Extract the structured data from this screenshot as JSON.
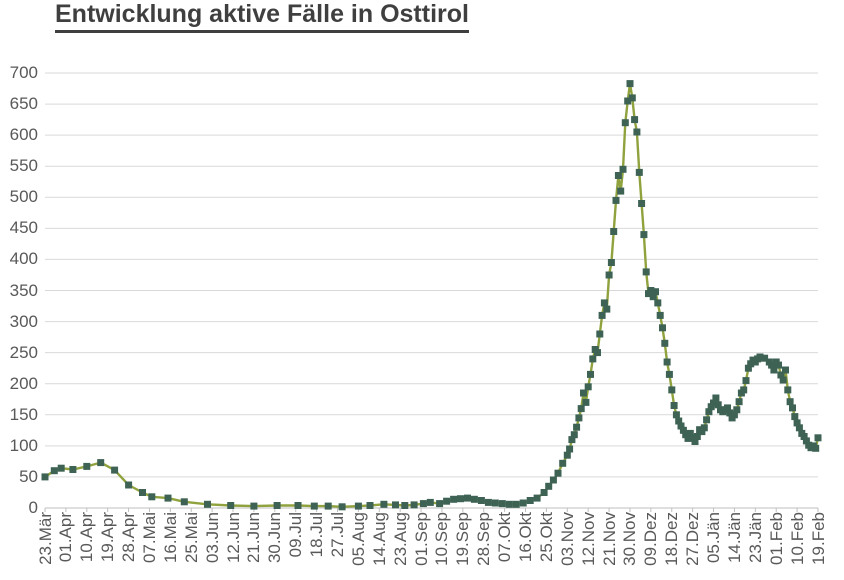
{
  "title": "Entwicklung aktive Fälle in Osttirol",
  "chart_data": {
    "type": "line",
    "title": "Entwicklung aktive Fälle in Osttirol",
    "legend": false,
    "grid": true,
    "x_axis": {
      "tick_labels": [
        "23.Mär",
        "01.Apr",
        "10.Apr",
        "19.Apr",
        "28.Apr",
        "07.Mai",
        "16.Mai",
        "25.Mai",
        "03.Jun",
        "12.Jun",
        "21.Jun",
        "30.Jun",
        "09.Jul",
        "18.Jul",
        "27.Jul",
        "05.Aug",
        "14.Aug",
        "23.Aug",
        "01.Sep",
        "10.Sep",
        "19.Sep",
        "28.Sep",
        "07.Okt",
        "16.Okt",
        "25.Okt",
        "03.Nov",
        "12.Nov",
        "21.Nov",
        "30.Nov",
        "09.Dez",
        "18.Dez",
        "27.Dez",
        "05.Jän",
        "14.Jän",
        "23.Jän",
        "01.Feb",
        "10.Feb",
        "19.Feb"
      ],
      "tick_interval_days": 9,
      "day_range": [
        0,
        333
      ]
    },
    "y_axis": {
      "min": 0,
      "max": 700,
      "step": 50,
      "tick_labels": [
        "0",
        "50",
        "100",
        "150",
        "200",
        "250",
        "300",
        "350",
        "400",
        "450",
        "500",
        "550",
        "600",
        "650",
        "700"
      ]
    },
    "series": [
      {
        "name": "aktive Fälle",
        "points": [
          [
            0,
            50
          ],
          [
            4,
            60
          ],
          [
            7,
            64
          ],
          [
            12,
            62
          ],
          [
            18,
            67
          ],
          [
            24,
            73
          ],
          [
            30,
            61
          ],
          [
            36,
            37
          ],
          [
            42,
            25
          ],
          [
            46,
            18
          ],
          [
            53,
            16
          ],
          [
            60,
            10
          ],
          [
            70,
            6
          ],
          [
            80,
            4
          ],
          [
            90,
            3
          ],
          [
            100,
            4
          ],
          [
            109,
            4
          ],
          [
            116,
            3
          ],
          [
            122,
            3
          ],
          [
            128,
            2
          ],
          [
            135,
            3
          ],
          [
            140,
            4
          ],
          [
            146,
            6
          ],
          [
            151,
            5
          ],
          [
            155,
            4
          ],
          [
            159,
            5
          ],
          [
            163,
            7
          ],
          [
            166,
            9
          ],
          [
            170,
            7
          ],
          [
            173,
            11
          ],
          [
            176,
            14
          ],
          [
            179,
            15
          ],
          [
            182,
            16
          ],
          [
            185,
            14
          ],
          [
            188,
            12
          ],
          [
            191,
            9
          ],
          [
            194,
            8
          ],
          [
            197,
            7
          ],
          [
            200,
            6
          ],
          [
            203,
            6
          ],
          [
            206,
            8
          ],
          [
            209,
            12
          ],
          [
            212,
            16
          ],
          [
            215,
            25
          ],
          [
            217,
            35
          ],
          [
            219,
            45
          ],
          [
            221,
            56
          ],
          [
            223,
            72
          ],
          [
            225,
            85
          ],
          [
            226,
            95
          ],
          [
            227,
            110
          ],
          [
            228,
            118
          ],
          [
            229,
            130
          ],
          [
            230,
            145
          ],
          [
            231,
            160
          ],
          [
            232,
            185
          ],
          [
            233,
            170
          ],
          [
            234,
            195
          ],
          [
            235,
            215
          ],
          [
            236,
            240
          ],
          [
            237,
            255
          ],
          [
            238,
            250
          ],
          [
            239,
            280
          ],
          [
            240,
            310
          ],
          [
            241,
            330
          ],
          [
            242,
            320
          ],
          [
            243,
            375
          ],
          [
            244,
            395
          ],
          [
            245,
            445
          ],
          [
            246,
            495
          ],
          [
            247,
            535
          ],
          [
            248,
            510
          ],
          [
            249,
            545
          ],
          [
            250,
            620
          ],
          [
            251,
            655
          ],
          [
            252,
            683
          ],
          [
            253,
            660
          ],
          [
            254,
            625
          ],
          [
            255,
            605
          ],
          [
            256,
            540
          ],
          [
            257,
            490
          ],
          [
            258,
            440
          ],
          [
            259,
            380
          ],
          [
            260,
            345
          ],
          [
            261,
            350
          ],
          [
            262,
            340
          ],
          [
            263,
            348
          ],
          [
            264,
            330
          ],
          [
            265,
            310
          ],
          [
            266,
            290
          ],
          [
            267,
            265
          ],
          [
            268,
            235
          ],
          [
            269,
            215
          ],
          [
            270,
            190
          ],
          [
            271,
            165
          ],
          [
            272,
            150
          ],
          [
            273,
            140
          ],
          [
            274,
            132
          ],
          [
            275,
            125
          ],
          [
            276,
            118
          ],
          [
            277,
            112
          ],
          [
            278,
            120
          ],
          [
            279,
            113
          ],
          [
            280,
            107
          ],
          [
            281,
            115
          ],
          [
            282,
            126
          ],
          [
            283,
            123
          ],
          [
            284,
            129
          ],
          [
            285,
            142
          ],
          [
            286,
            155
          ],
          [
            287,
            163
          ],
          [
            288,
            169
          ],
          [
            289,
            177
          ],
          [
            290,
            166
          ],
          [
            291,
            158
          ],
          [
            292,
            155
          ],
          [
            293,
            158
          ],
          [
            294,
            161
          ],
          [
            295,
            153
          ],
          [
            296,
            145
          ],
          [
            297,
            150
          ],
          [
            298,
            158
          ],
          [
            299,
            171
          ],
          [
            300,
            185
          ],
          [
            301,
            190
          ],
          [
            302,
            205
          ],
          [
            303,
            225
          ],
          [
            304,
            232
          ],
          [
            305,
            238
          ],
          [
            306,
            235
          ],
          [
            307,
            240
          ],
          [
            308,
            243
          ],
          [
            310,
            241
          ],
          [
            312,
            235
          ],
          [
            313,
            230
          ],
          [
            314,
            222
          ],
          [
            315,
            235
          ],
          [
            316,
            230
          ],
          [
            317,
            214
          ],
          [
            318,
            206
          ],
          [
            319,
            222
          ],
          [
            320,
            190
          ],
          [
            321,
            171
          ],
          [
            322,
            161
          ],
          [
            323,
            147
          ],
          [
            324,
            137
          ],
          [
            325,
            129
          ],
          [
            326,
            120
          ],
          [
            327,
            115
          ],
          [
            328,
            108
          ],
          [
            329,
            101
          ],
          [
            330,
            97
          ],
          [
            331,
            100
          ],
          [
            332,
            96
          ],
          [
            333,
            113
          ]
        ]
      }
    ],
    "colors": {
      "line": "#8FA23E",
      "marker": "#3E6355",
      "gridline": "#D9D9D9",
      "axis": "#BFBFBF",
      "tick_text": "#595959",
      "title_text": "#3F3F3F"
    }
  }
}
